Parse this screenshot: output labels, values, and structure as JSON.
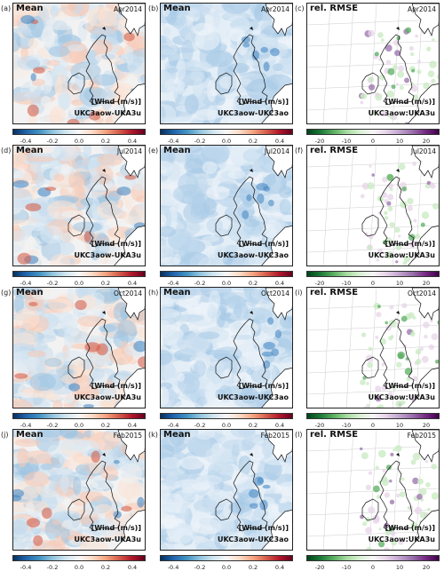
{
  "chart_data": {
    "type": "heatmap",
    "rows": [
      {
        "date": "Apr2014",
        "labels": [
          "(a)",
          "(b)",
          "(c)"
        ]
      },
      {
        "date": "Jul2014",
        "labels": [
          "(d)",
          "(e)",
          "(f)"
        ]
      },
      {
        "date": "Oct2014",
        "labels": [
          "(g)",
          "(h)",
          "(i)"
        ]
      },
      {
        "date": "Feb2015",
        "labels": [
          "(j)",
          "(k)",
          "(l)"
        ]
      }
    ],
    "columns": [
      {
        "title": "Mean",
        "experiment": "UKC3aow-UKA3u",
        "unit": "[Wind (m/s)]",
        "cmap": "RdBu_r",
        "ticks": [
          "-0.4",
          "-0.2",
          "0.0",
          "0.2",
          "0.4"
        ],
        "range": [
          -0.5,
          0.5
        ]
      },
      {
        "title": "Mean",
        "experiment": "UKC3aow-UKC3ao",
        "unit": "[Wind (m/s)]",
        "cmap": "RdBu_r",
        "ticks": [
          "-0.4",
          "-0.2",
          "0.0",
          "0.2",
          "0.4"
        ],
        "range": [
          -0.5,
          0.5
        ]
      },
      {
        "title": "rel. RMSE",
        "experiment": "UKC3aow:UKA3u",
        "unit": "[Wind (m/s)]",
        "cmap": "PRGn_r",
        "ticks": [
          "-20",
          "-10",
          "0",
          "10",
          "20"
        ],
        "range": [
          -25,
          25
        ]
      }
    ]
  },
  "colors": {
    "blue_dark": "#2166ac",
    "blue_light": "#d1e5f0",
    "red_dark": "#b2182b",
    "red_light": "#fddbc7",
    "green_dark": "#1b7837",
    "purple_dark": "#762a83",
    "coast": "#111111"
  }
}
